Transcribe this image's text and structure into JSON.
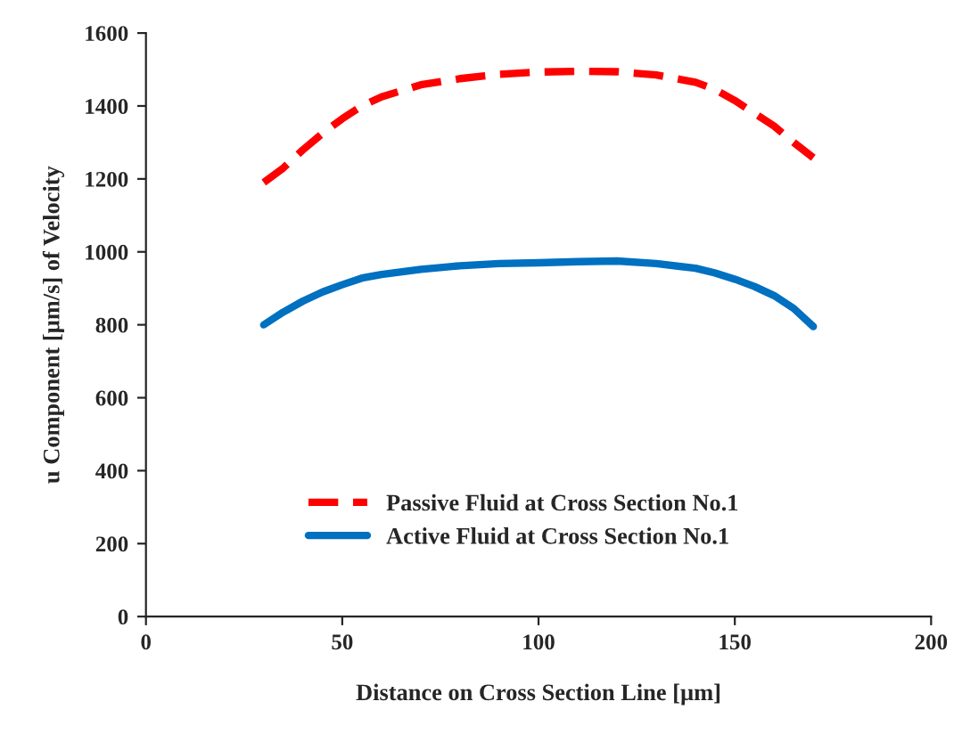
{
  "chart_data": {
    "type": "line",
    "xlabel": "Distance on Cross Section Line [µm]",
    "ylabel": "u Component [µm/s] of Velocity",
    "xlim": [
      0,
      200
    ],
    "xticks": [
      0,
      50,
      100,
      150,
      200
    ],
    "ylim": [
      0,
      1600
    ],
    "yticks": [
      0,
      200,
      400,
      600,
      800,
      1000,
      1200,
      1400,
      1600
    ],
    "grid": false,
    "legend": "bottom",
    "series": [
      {
        "name": "Passive Fluid at Cross Section No.1",
        "color": "#ff0000",
        "line_style": "dashed",
        "x": [
          30,
          35,
          40,
          45,
          50,
          55,
          60,
          70,
          80,
          90,
          100,
          110,
          120,
          130,
          140,
          145,
          150,
          155,
          160,
          165,
          170
        ],
        "values": [
          1190,
          1230,
          1280,
          1325,
          1365,
          1400,
          1425,
          1458,
          1475,
          1487,
          1493,
          1495,
          1494,
          1485,
          1465,
          1445,
          1415,
          1380,
          1345,
          1300,
          1258
        ]
      },
      {
        "name": "Active Fluid at Cross Section No.1",
        "color": "#0070c0",
        "line_style": "solid",
        "x": [
          30,
          35,
          40,
          45,
          50,
          55,
          60,
          70,
          80,
          90,
          100,
          110,
          120,
          130,
          140,
          145,
          150,
          155,
          160,
          165,
          170
        ],
        "values": [
          800,
          835,
          865,
          890,
          910,
          928,
          938,
          952,
          962,
          968,
          970,
          973,
          975,
          968,
          955,
          942,
          925,
          905,
          880,
          845,
          795
        ]
      }
    ]
  }
}
